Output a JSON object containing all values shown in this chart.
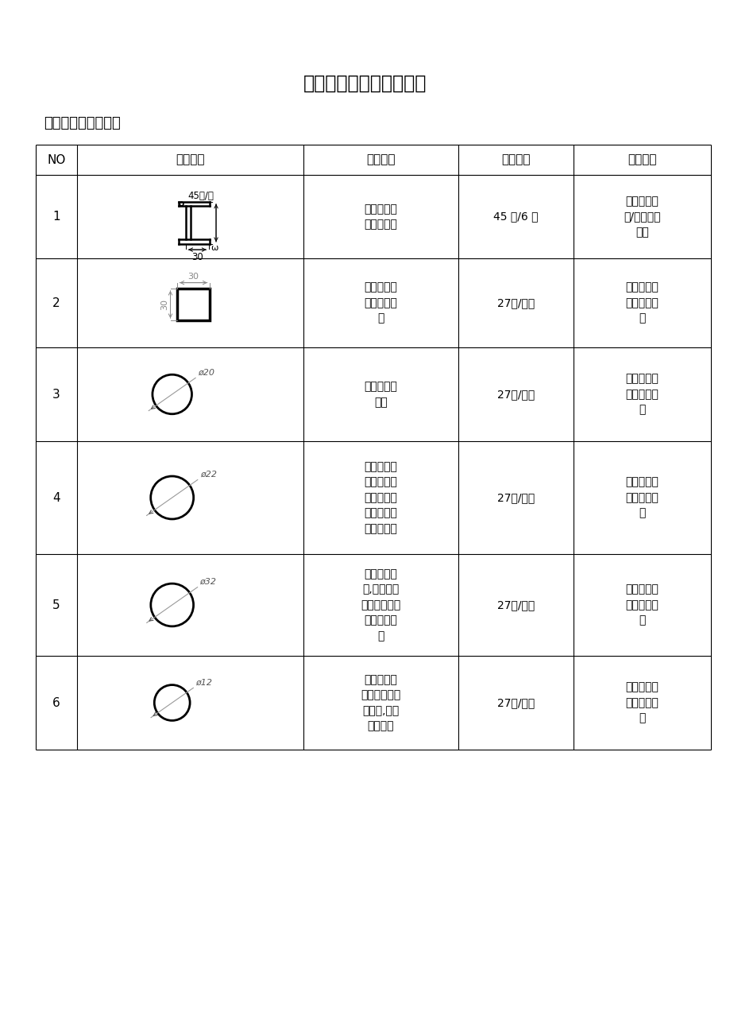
{
  "title": "斯特林模型常规材料参数",
  "section_title": "一、常用铝型材参数",
  "col_headers": [
    "NO",
    "截面参数",
    "主要用途",
    "参考价格",
    "采购渠道"
  ],
  "rows": [
    {
      "no": "1",
      "purpose": "可用作摆臂\n支撑的基座",
      "price": "45 元/6 米",
      "channel": "装饰铝型材\n店/下沙镇小\n学旁",
      "shape": "L_channel"
    },
    {
      "no": "2",
      "purpose": "可用于斯特\n林主体的制\n作",
      "price": "27元/公斤",
      "channel": "焦家村金属\n现货交易市\n场",
      "shape": "square_tube"
    },
    {
      "no": "3",
      "purpose": "可用于制作\n飞轮",
      "price": "27元/公斤",
      "channel": "焦家村金属\n现货交易市\n场",
      "shape": "circle",
      "label": "ø20",
      "circle_size": 0.42
    },
    {
      "no": "4",
      "purpose": "可用于热气\n缸活塞或者\n斯特林主体\n的及相应连\n接件的制作",
      "price": "27元/公斤",
      "channel": "焦家村金属\n现货交易市\n场",
      "shape": "circle",
      "label": "ø22",
      "circle_size": 0.38
    },
    {
      "no": "5",
      "purpose": "可用于热气\n缸,动力气缸\n的外壁制作、\n飞轮连接件\n等",
      "price": "27元/公斤",
      "channel": "焦家村金属\n现货交易市\n场",
      "shape": "circle",
      "label": "ø32",
      "circle_size": 0.42
    },
    {
      "no": "6",
      "purpose": "可用于飞轮\n支撑件、连杆\n支撑件,导气\n杆的制作",
      "price": "27元/公斤",
      "channel": "焦家村金属\n现货交易市\n场",
      "shape": "circle",
      "label": "ø12",
      "circle_size": 0.38
    }
  ],
  "bg_color": "#ffffff",
  "text_color": "#000000",
  "title_fontsize": 17,
  "header_fontsize": 11,
  "cell_fontsize": 10,
  "no_fontsize": 11
}
